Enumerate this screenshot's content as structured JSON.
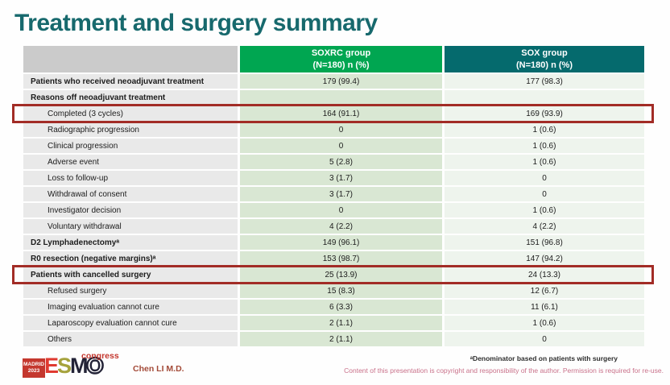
{
  "title": "Treatment and surgery summary",
  "table": {
    "header": {
      "group1_name": "SOXRC group",
      "group1_sub": "(N=180)  n (%)",
      "group2_name": "SOX group",
      "group2_sub": "(N=180)  n (%)"
    },
    "rows": [
      {
        "label": "Patients who received neoadjuvant treatment",
        "soxrc": "179 (99.4)",
        "sox": "177 (98.3)",
        "bold": true,
        "indent": false,
        "highlight": false
      },
      {
        "label": "Reasons off neoadjuvant treatment",
        "soxrc": "",
        "sox": "",
        "bold": true,
        "indent": false,
        "highlight": false
      },
      {
        "label": "Completed (3 cycles)",
        "soxrc": "164 (91.1)",
        "sox": "169 (93.9)",
        "bold": false,
        "indent": true,
        "highlight": true
      },
      {
        "label": "Radiographic progression",
        "soxrc": "0",
        "sox": "1 (0.6)",
        "bold": false,
        "indent": true,
        "highlight": false
      },
      {
        "label": "Clinical progression",
        "soxrc": "0",
        "sox": "1 (0.6)",
        "bold": false,
        "indent": true,
        "highlight": false
      },
      {
        "label": "Adverse event",
        "soxrc": "5 (2.8)",
        "sox": "1 (0.6)",
        "bold": false,
        "indent": true,
        "highlight": false
      },
      {
        "label": "Loss to follow-up",
        "soxrc": "3 (1.7)",
        "sox": "0",
        "bold": false,
        "indent": true,
        "highlight": false
      },
      {
        "label": "Withdrawal of consent",
        "soxrc": "3 (1.7)",
        "sox": "0",
        "bold": false,
        "indent": true,
        "highlight": false
      },
      {
        "label": "Investigator decision",
        "soxrc": "0",
        "sox": "1 (0.6)",
        "bold": false,
        "indent": true,
        "highlight": false
      },
      {
        "label": "Voluntary withdrawal",
        "soxrc": "4 (2.2)",
        "sox": "4 (2.2)",
        "bold": false,
        "indent": true,
        "highlight": false
      },
      {
        "label": "D2 Lymphadenectomyᵃ",
        "soxrc": "149 (96.1)",
        "sox": "151 (96.8)",
        "bold": true,
        "indent": false,
        "highlight": false
      },
      {
        "label": "R0 resection (negative margins)ᵃ",
        "soxrc": "153 (98.7)",
        "sox": "147 (94.2)",
        "bold": true,
        "indent": false,
        "highlight": false
      },
      {
        "label": "Patients with cancelled surgery",
        "soxrc": "25 (13.9)",
        "sox": "24 (13.3)",
        "bold": true,
        "indent": false,
        "highlight": true
      },
      {
        "label": "Refused surgery",
        "soxrc": "15 (8.3)",
        "sox": "12 (6.7)",
        "bold": false,
        "indent": true,
        "highlight": false
      },
      {
        "label": "Imaging evaluation cannot cure",
        "soxrc": "6 (3.3)",
        "sox": "11 (6.1)",
        "bold": false,
        "indent": true,
        "highlight": false
      },
      {
        "label": "Laparoscopy evaluation cannot cure",
        "soxrc": "2 (1.1)",
        "sox": "1 (0.6)",
        "bold": false,
        "indent": true,
        "highlight": false
      },
      {
        "label": "Others",
        "soxrc": "2 (1.1)",
        "sox": "0",
        "bold": false,
        "indent": true,
        "highlight": false
      }
    ]
  },
  "footer": {
    "presenter": "Chen LI M.D.",
    "footnote": "ᵃDenominator based on patients with surgery",
    "copyright": "Content of this presentation is copyright and responsibility of the author. Permission is required for re-use."
  },
  "logo": {
    "venue": "MADRID",
    "year": "2023",
    "l1": "E",
    "l2": "S",
    "l3": "M",
    "l4": "O",
    "congress": "congress"
  },
  "colors": {
    "title_teal": "#17696d",
    "header_green": "#00a651",
    "header_teal": "#056a6d",
    "highlight_red": "#a22c26",
    "soxrc_cell_green": "#d9e7d3",
    "sox_cell_green": "#eef4ed",
    "label_cell_gray": "#e9e9e9",
    "copyright_pink": "#c9718a"
  }
}
